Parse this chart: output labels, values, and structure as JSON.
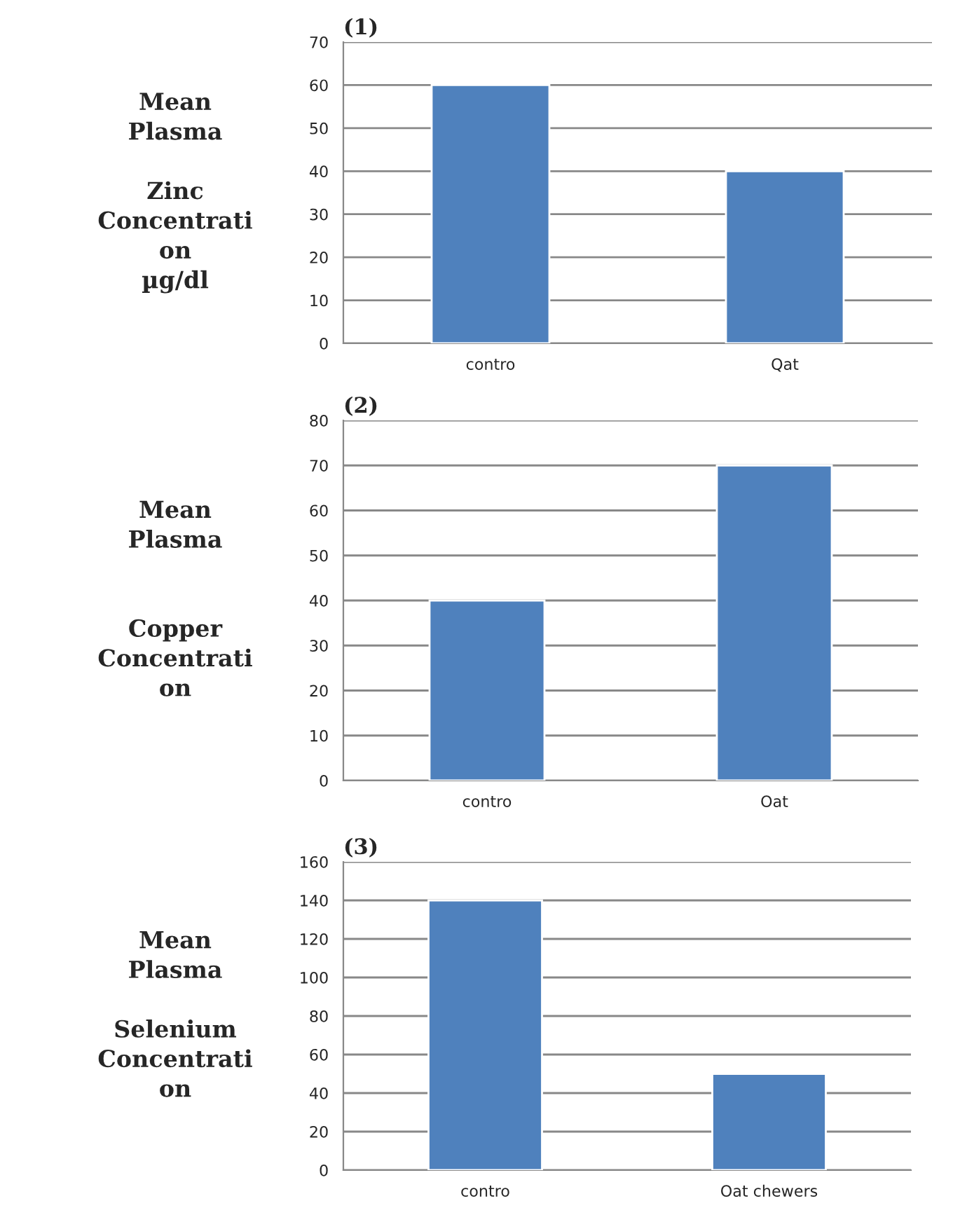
{
  "chart_data": [
    {
      "type": "bar",
      "title": "(1)",
      "ylabel": "Mean\nPlasma\n\nZinc\nConcentrati\non\nµg/dl",
      "categories": [
        "contro",
        "Qat"
      ],
      "values": [
        60,
        40
      ],
      "color": "#4f81bd",
      "ylim": [
        0,
        70
      ],
      "yticks": [
        0,
        10,
        20,
        30,
        40,
        50,
        60,
        70
      ],
      "grid": "y"
    },
    {
      "type": "bar",
      "title": "(2)",
      "ylabel": "Mean\nPlasma\n\n\nCopper\nConcentrati\non",
      "categories": [
        "contro",
        "Oat"
      ],
      "values": [
        40,
        70
      ],
      "color": "#4f81bd",
      "ylim": [
        0,
        80
      ],
      "yticks": [
        0,
        10,
        20,
        30,
        40,
        50,
        60,
        70,
        80
      ],
      "grid": "y"
    },
    {
      "type": "bar",
      "title": "(3)",
      "ylabel": "Mean\nPlasma\n\nSelenium\nConcentrati\non",
      "categories": [
        "contro",
        "Oat chewers"
      ],
      "values": [
        140,
        50
      ],
      "color": "#4f81bd",
      "ylim": [
        0,
        160
      ],
      "yticks": [
        0,
        20,
        40,
        60,
        80,
        100,
        120,
        140,
        160
      ],
      "grid": "y"
    }
  ]
}
